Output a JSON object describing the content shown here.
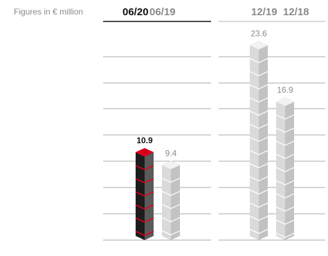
{
  "chart_data": {
    "type": "bar",
    "units_label": "Figures in € million",
    "groups": [
      {
        "period_labels": [
          "06/20",
          "06/19"
        ],
        "bars": [
          {
            "period": "06/20",
            "value": 10.9,
            "value_label": "10.9",
            "highlight": true
          },
          {
            "period": "06/19",
            "value": 9.4,
            "value_label": "9.4",
            "highlight": false
          }
        ]
      },
      {
        "period_labels": [
          "12/19",
          "12/18"
        ],
        "bars": [
          {
            "period": "12/19",
            "value": 23.6,
            "value_label": "23.6",
            "highlight": false
          },
          {
            "period": "12/18",
            "value": 16.9,
            "value_label": "16.9",
            "highlight": false
          }
        ]
      }
    ],
    "ylim": [
      0,
      27
    ],
    "grid": true,
    "colors": {
      "highlight_front": "#1c1c1c",
      "highlight_side": "#5a5a5a",
      "highlight_top": "#d6001c",
      "highlight_seam": "#e2001a",
      "grey_front": "#dadada",
      "grey_side": "#c2c2c2",
      "grey_top": "#f2f2f2",
      "grey_seam": "#ffffff",
      "gridline": "#8c8c8c",
      "text_dark": "#111111",
      "text_grey": "#8a8a8a"
    }
  }
}
